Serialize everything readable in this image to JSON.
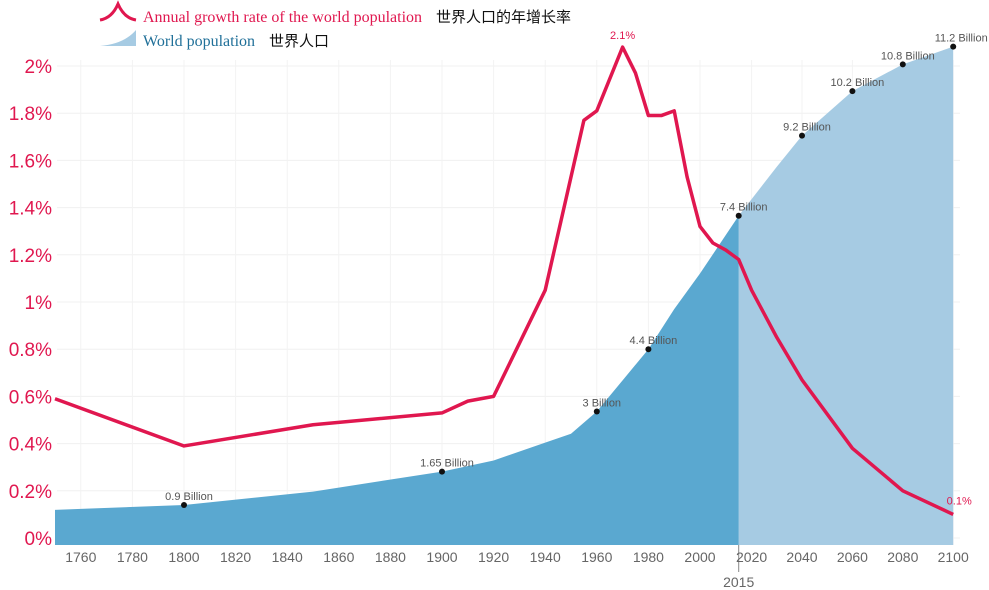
{
  "chart_data": {
    "type": "line+area",
    "legend": [
      {
        "name": "Annual growth rate of the world population",
        "name_cn": "世界人口的年增长率",
        "color": "#e0174f"
      },
      {
        "name": "World population",
        "name_cn": "世界人口",
        "color": "#5aa8d0"
      }
    ],
    "y_ticks": [
      "0%",
      "0.2%",
      "0.4%",
      "0.6%",
      "0.8%",
      "1%",
      "1.2%",
      "1.4%",
      "1.6%",
      "1.8%",
      "2%"
    ],
    "y_tick_values": [
      0,
      0.2,
      0.4,
      0.6,
      0.8,
      1,
      1.2,
      1.4,
      1.6,
      1.8,
      2
    ],
    "x_ticks": [
      1760,
      1780,
      1800,
      1820,
      1840,
      1860,
      1880,
      1900,
      1920,
      1940,
      1960,
      1980,
      2000,
      2020,
      2040,
      2060,
      2080,
      2100
    ],
    "marker_year": "2015",
    "growth_rate": {
      "years": [
        1750,
        1800,
        1850,
        1900,
        1910,
        1920,
        1940,
        1955,
        1960,
        1970,
        1975,
        1980,
        1985,
        1990,
        1995,
        2000,
        2005,
        2010,
        2015,
        2020,
        2030,
        2040,
        2060,
        2080,
        2100
      ],
      "values": [
        0.59,
        0.39,
        0.48,
        0.53,
        0.58,
        0.6,
        1.05,
        1.77,
        1.81,
        2.08,
        1.97,
        1.79,
        1.79,
        1.81,
        1.53,
        1.32,
        1.25,
        1.22,
        1.18,
        1.05,
        0.85,
        0.67,
        0.38,
        0.2,
        0.1
      ]
    },
    "population_billion": {
      "years": [
        1750,
        1800,
        1850,
        1900,
        1920,
        1940,
        1950,
        1960,
        1970,
        1980,
        1990,
        2000,
        2015,
        2030,
        2040,
        2050,
        2060,
        2080,
        2100
      ],
      "values": [
        0.79,
        0.9,
        1.2,
        1.65,
        1.9,
        2.3,
        2.5,
        3.0,
        3.7,
        4.4,
        5.3,
        6.1,
        7.4,
        8.5,
        9.2,
        9.7,
        10.2,
        10.8,
        11.2
      ]
    },
    "population_labels": [
      {
        "year": 1800,
        "value": 0.9,
        "text": "0.9 Billion"
      },
      {
        "year": 1900,
        "value": 1.65,
        "text": "1.65 Billion"
      },
      {
        "year": 1960,
        "value": 3.0,
        "text": "3 Billion"
      },
      {
        "year": 1980,
        "value": 4.4,
        "text": "4.4 Billion"
      },
      {
        "year": 2015,
        "value": 7.4,
        "text": "7.4 Billion"
      },
      {
        "year": 2040,
        "value": 9.2,
        "text": "9.2 Billion"
      },
      {
        "year": 2060,
        "value": 10.2,
        "text": "10.2 Billion"
      },
      {
        "year": 2080,
        "value": 10.8,
        "text": "10.8 Billion"
      },
      {
        "year": 2100,
        "value": 11.2,
        "text": "11.2 Billion"
      }
    ],
    "growth_labels": [
      {
        "year": 1970,
        "value": 2.08,
        "text": "2.1%"
      },
      {
        "year": 2100,
        "value": 0.1,
        "text": "0.1%"
      }
    ],
    "colors": {
      "rate": "#e0174f",
      "pop_history": "#5aa8d0",
      "pop_projection": "#a6cbe3",
      "tick_y": "#e0174f",
      "tick_x": "#666"
    }
  }
}
